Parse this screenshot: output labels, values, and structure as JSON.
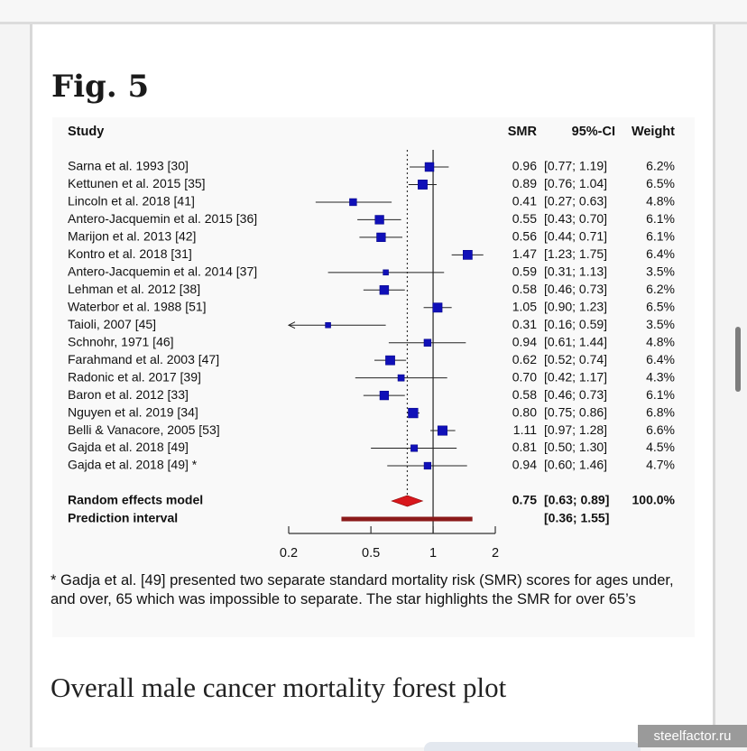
{
  "figure": {
    "label": "Fig. 5",
    "footnote": "* Gadja et al. [49] presented two separate standard mortality risk (SMR) scores for ages under, and over, 65 which was impossible to separate. The star highlights the SMR for over 65’s",
    "caption": "Overall male cancer mortality forest plot"
  },
  "watermark": "steelfactor.ru",
  "colors": {
    "marker": "#1010b8",
    "summary": "#d8171c",
    "prediction": "#8b1a1a",
    "axis": "#333333"
  },
  "chart_data": {
    "type": "forest",
    "scale": "log",
    "xlim": [
      0.2,
      2
    ],
    "xticks": [
      0.2,
      0.5,
      1,
      2
    ],
    "reference_line": 1,
    "summary_line": 0.75,
    "headers": {
      "study": "Study",
      "smr": "SMR",
      "ci": "95%-CI",
      "weight": "Weight"
    },
    "studies": [
      {
        "label": "Sarna et al. 1993 [30]",
        "smr": 0.96,
        "lower": 0.77,
        "upper": 1.19,
        "smr_text": "0.96",
        "ci_text": "[0.77; 1.19]",
        "weight": 6.2,
        "weight_text": "6.2%"
      },
      {
        "label": "Kettunen et al. 2015 [35]",
        "smr": 0.89,
        "lower": 0.76,
        "upper": 1.04,
        "smr_text": "0.89",
        "ci_text": "[0.76; 1.04]",
        "weight": 6.5,
        "weight_text": "6.5%"
      },
      {
        "label": "Lincoln et al. 2018 [41]",
        "smr": 0.41,
        "lower": 0.27,
        "upper": 0.63,
        "smr_text": "0.41",
        "ci_text": "[0.27; 0.63]",
        "weight": 4.8,
        "weight_text": "4.8%"
      },
      {
        "label": "Antero-Jacquemin et al. 2015 [36]",
        "smr": 0.55,
        "lower": 0.43,
        "upper": 0.7,
        "smr_text": "0.55",
        "ci_text": "[0.43; 0.70]",
        "weight": 6.1,
        "weight_text": "6.1%"
      },
      {
        "label": "Marijon et al. 2013 [42]",
        "smr": 0.56,
        "lower": 0.44,
        "upper": 0.71,
        "smr_text": "0.56",
        "ci_text": "[0.44; 0.71]",
        "weight": 6.1,
        "weight_text": "6.1%"
      },
      {
        "label": "Kontro et al. 2018 [31]",
        "smr": 1.47,
        "lower": 1.23,
        "upper": 1.75,
        "smr_text": "1.47",
        "ci_text": "[1.23; 1.75]",
        "weight": 6.4,
        "weight_text": "6.4%"
      },
      {
        "label": "Antero-Jacquemin et al. 2014 [37]",
        "smr": 0.59,
        "lower": 0.31,
        "upper": 1.13,
        "smr_text": "0.59",
        "ci_text": "[0.31; 1.13]",
        "weight": 3.5,
        "weight_text": "3.5%"
      },
      {
        "label": "Lehman et al. 2012 [38]",
        "smr": 0.58,
        "lower": 0.46,
        "upper": 0.73,
        "smr_text": "0.58",
        "ci_text": "[0.46; 0.73]",
        "weight": 6.2,
        "weight_text": "6.2%"
      },
      {
        "label": "Waterbor et al. 1988 [51]",
        "smr": 1.05,
        "lower": 0.9,
        "upper": 1.23,
        "smr_text": "1.05",
        "ci_text": "[0.90; 1.23]",
        "weight": 6.5,
        "weight_text": "6.5%"
      },
      {
        "label": "Taioli, 2007 [45]",
        "smr": 0.31,
        "lower": 0.16,
        "upper": 0.59,
        "smr_text": "0.31",
        "ci_text": "[0.16; 0.59]",
        "weight": 3.5,
        "weight_text": "3.5%",
        "arrow_left": true
      },
      {
        "label": "Schnohr, 1971 [46]",
        "smr": 0.94,
        "lower": 0.61,
        "upper": 1.44,
        "smr_text": "0.94",
        "ci_text": "[0.61; 1.44]",
        "weight": 4.8,
        "weight_text": "4.8%"
      },
      {
        "label": "Farahmand et al. 2003 [47]",
        "smr": 0.62,
        "lower": 0.52,
        "upper": 0.74,
        "smr_text": "0.62",
        "ci_text": "[0.52; 0.74]",
        "weight": 6.4,
        "weight_text": "6.4%"
      },
      {
        "label": "Radonic et al. 2017 [39]",
        "smr": 0.7,
        "lower": 0.42,
        "upper": 1.17,
        "smr_text": "0.70",
        "ci_text": "[0.42; 1.17]",
        "weight": 4.3,
        "weight_text": "4.3%"
      },
      {
        "label": "Baron et al. 2012 [33]",
        "smr": 0.58,
        "lower": 0.46,
        "upper": 0.73,
        "smr_text": "0.58",
        "ci_text": "[0.46; 0.73]",
        "weight": 6.1,
        "weight_text": "6.1%"
      },
      {
        "label": "Nguyen et al. 2019 [34]",
        "smr": 0.8,
        "lower": 0.75,
        "upper": 0.86,
        "smr_text": "0.80",
        "ci_text": "[0.75; 0.86]",
        "weight": 6.8,
        "weight_text": "6.8%"
      },
      {
        "label": "Belli & Vanacore, 2005 [53]",
        "smr": 1.11,
        "lower": 0.97,
        "upper": 1.28,
        "smr_text": "1.11",
        "ci_text": "[0.97; 1.28]",
        "weight": 6.6,
        "weight_text": "6.6%"
      },
      {
        "label": "Gajda et al. 2018 [49]",
        "smr": 0.81,
        "lower": 0.5,
        "upper": 1.3,
        "smr_text": "0.81",
        "ci_text": "[0.50; 1.30]",
        "weight": 4.5,
        "weight_text": "4.5%"
      },
      {
        "label": "Gajda et al. 2018 [49] *",
        "smr": 0.94,
        "lower": 0.6,
        "upper": 1.46,
        "smr_text": "0.94",
        "ci_text": "[0.60; 1.46]",
        "weight": 4.7,
        "weight_text": "4.7%"
      }
    ],
    "random_effects": {
      "label": "Random effects model",
      "smr": 0.75,
      "lower": 0.63,
      "upper": 0.89,
      "smr_text": "0.75",
      "ci_text": "[0.63; 0.89]",
      "weight_text": "100.0%"
    },
    "prediction_interval": {
      "label": "Prediction interval",
      "lower": 0.36,
      "upper": 1.55,
      "ci_text": "[0.36; 1.55]"
    }
  }
}
